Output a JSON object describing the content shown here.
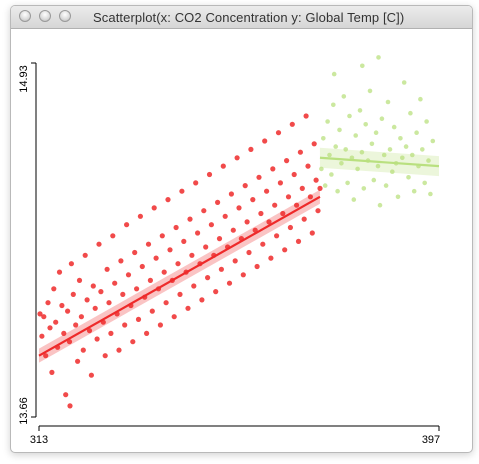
{
  "window": {
    "title": "Scatterplot(x: CO2 Concentration y: Global Temp [C])"
  },
  "colors": {
    "series_1": "#ee2a2a",
    "series_2": "#b9e07f",
    "axis": "#000000",
    "titlebar_bg": "#e3e3e3"
  },
  "chart_data": {
    "type": "scatter",
    "title": "",
    "xlabel": "",
    "ylabel": "",
    "xlim": [
      313,
      397
    ],
    "ylim": [
      13.66,
      14.93
    ],
    "x_ticks": [
      "313",
      "397"
    ],
    "y_ticks": [
      "14.93",
      "13.66"
    ],
    "grid": false,
    "series": [
      {
        "color": "#ee2a2a",
        "trend": {
          "x": [
            313,
            372
          ],
          "y": [
            13.88,
            14.45
          ]
        },
        "points": [
          [
            313.2,
            14.03
          ],
          [
            313.6,
            13.95
          ],
          [
            314.0,
            14.02
          ],
          [
            314.4,
            13.88
          ],
          [
            314.9,
            14.07
          ],
          [
            315.3,
            13.98
          ],
          [
            315.7,
            13.82
          ],
          [
            316.1,
            14.12
          ],
          [
            316.5,
            14.0
          ],
          [
            316.9,
            13.91
          ],
          [
            317.3,
            14.18
          ],
          [
            317.8,
            14.06
          ],
          [
            318.2,
            13.96
          ],
          [
            318.6,
            13.74
          ],
          [
            319.0,
            14.04
          ],
          [
            319.4,
            13.93
          ],
          [
            319.8,
            14.21
          ],
          [
            320.2,
            14.1
          ],
          [
            320.7,
            13.99
          ],
          [
            321.1,
            13.86
          ],
          [
            321.5,
            14.15
          ],
          [
            321.9,
            14.02
          ],
          [
            322.3,
            13.9
          ],
          [
            322.7,
            14.24
          ],
          [
            323.1,
            14.08
          ],
          [
            323.6,
            13.97
          ],
          [
            324.0,
            13.81
          ],
          [
            324.4,
            14.13
          ],
          [
            324.8,
            14.05
          ],
          [
            325.2,
            13.94
          ],
          [
            325.6,
            14.28
          ],
          [
            326.0,
            14.11
          ],
          [
            326.5,
            14.0
          ],
          [
            326.9,
            13.88
          ],
          [
            327.3,
            14.19
          ],
          [
            327.7,
            14.07
          ],
          [
            328.1,
            13.96
          ],
          [
            328.5,
            14.31
          ],
          [
            328.9,
            14.14
          ],
          [
            329.4,
            14.03
          ],
          [
            329.8,
            13.9
          ],
          [
            330.2,
            14.22
          ],
          [
            330.6,
            14.1
          ],
          [
            331.0,
            13.99
          ],
          [
            331.4,
            14.35
          ],
          [
            331.8,
            14.17
          ],
          [
            332.3,
            14.06
          ],
          [
            332.7,
            13.93
          ],
          [
            333.1,
            14.25
          ],
          [
            333.5,
            14.12
          ],
          [
            333.9,
            14.01
          ],
          [
            334.3,
            14.38
          ],
          [
            334.7,
            14.2
          ],
          [
            335.2,
            14.09
          ],
          [
            335.6,
            13.96
          ],
          [
            336.0,
            14.28
          ],
          [
            336.4,
            14.15
          ],
          [
            336.8,
            14.04
          ],
          [
            337.2,
            14.41
          ],
          [
            337.6,
            14.23
          ],
          [
            338.1,
            14.12
          ],
          [
            338.5,
            13.99
          ],
          [
            338.9,
            14.31
          ],
          [
            339.3,
            14.18
          ],
          [
            339.7,
            14.07
          ],
          [
            340.1,
            14.44
          ],
          [
            340.5,
            14.26
          ],
          [
            341.0,
            14.15
          ],
          [
            341.4,
            14.02
          ],
          [
            341.8,
            14.34
          ],
          [
            342.2,
            14.21
          ],
          [
            342.6,
            14.1
          ],
          [
            343.0,
            14.47
          ],
          [
            343.4,
            14.29
          ],
          [
            343.9,
            14.18
          ],
          [
            344.3,
            14.05
          ],
          [
            344.7,
            14.37
          ],
          [
            345.1,
            14.24
          ],
          [
            345.5,
            14.13
          ],
          [
            345.9,
            14.5
          ],
          [
            346.3,
            14.32
          ],
          [
            346.8,
            14.21
          ],
          [
            347.2,
            14.08
          ],
          [
            347.6,
            14.4
          ],
          [
            348.0,
            14.27
          ],
          [
            348.4,
            14.16
          ],
          [
            348.8,
            14.53
          ],
          [
            349.2,
            14.35
          ],
          [
            349.7,
            14.24
          ],
          [
            350.1,
            14.11
          ],
          [
            350.5,
            14.43
          ],
          [
            350.9,
            14.3
          ],
          [
            351.3,
            14.19
          ],
          [
            351.7,
            14.56
          ],
          [
            352.1,
            14.38
          ],
          [
            352.6,
            14.27
          ],
          [
            353.0,
            14.14
          ],
          [
            353.4,
            14.46
          ],
          [
            353.8,
            14.33
          ],
          [
            354.2,
            14.22
          ],
          [
            354.6,
            14.59
          ],
          [
            355.0,
            14.41
          ],
          [
            355.5,
            14.3
          ],
          [
            355.9,
            14.17
          ],
          [
            356.3,
            14.49
          ],
          [
            356.7,
            14.36
          ],
          [
            357.1,
            14.25
          ],
          [
            357.5,
            14.62
          ],
          [
            357.9,
            14.44
          ],
          [
            358.4,
            14.33
          ],
          [
            358.8,
            14.2
          ],
          [
            359.2,
            14.52
          ],
          [
            359.6,
            14.39
          ],
          [
            360.0,
            14.28
          ],
          [
            360.4,
            14.65
          ],
          [
            360.8,
            14.47
          ],
          [
            361.3,
            14.36
          ],
          [
            361.7,
            14.23
          ],
          [
            362.1,
            14.55
          ],
          [
            362.5,
            14.42
          ],
          [
            362.9,
            14.31
          ],
          [
            363.3,
            14.68
          ],
          [
            363.7,
            14.5
          ],
          [
            364.2,
            14.39
          ],
          [
            364.6,
            14.26
          ],
          [
            365.0,
            14.58
          ],
          [
            365.4,
            14.45
          ],
          [
            365.8,
            14.34
          ],
          [
            366.2,
            14.71
          ],
          [
            366.6,
            14.53
          ],
          [
            367.1,
            14.42
          ],
          [
            367.5,
            14.29
          ],
          [
            367.9,
            14.61
          ],
          [
            368.3,
            14.48
          ],
          [
            368.7,
            14.37
          ],
          [
            369.1,
            14.74
          ],
          [
            369.5,
            14.56
          ],
          [
            370.0,
            14.45
          ],
          [
            370.4,
            14.32
          ],
          [
            370.8,
            14.64
          ],
          [
            371.2,
            14.51
          ],
          [
            371.6,
            14.4
          ],
          [
            372.0,
            14.48
          ],
          [
            319.5,
            13.7
          ]
        ]
      },
      {
        "color": "#b9e07f",
        "trend": {
          "x": [
            372,
            397
          ],
          "y": [
            14.59,
            14.56
          ]
        },
        "points": [
          [
            372.3,
            14.55
          ],
          [
            372.7,
            14.66
          ],
          [
            373.1,
            14.49
          ],
          [
            373.6,
            14.72
          ],
          [
            374.0,
            14.6
          ],
          [
            374.4,
            14.53
          ],
          [
            374.8,
            14.78
          ],
          [
            375.3,
            14.63
          ],
          [
            375.7,
            14.47
          ],
          [
            376.1,
            14.69
          ],
          [
            376.5,
            14.57
          ],
          [
            377.0,
            14.81
          ],
          [
            377.4,
            14.62
          ],
          [
            377.8,
            14.5
          ],
          [
            378.2,
            14.74
          ],
          [
            378.7,
            14.59
          ],
          [
            379.1,
            14.44
          ],
          [
            379.5,
            14.67
          ],
          [
            379.9,
            14.55
          ],
          [
            380.4,
            14.76
          ],
          [
            380.8,
            14.61
          ],
          [
            381.2,
            14.48
          ],
          [
            381.6,
            14.71
          ],
          [
            382.1,
            14.58
          ],
          [
            382.5,
            14.83
          ],
          [
            382.9,
            14.64
          ],
          [
            383.3,
            14.51
          ],
          [
            383.8,
            14.68
          ],
          [
            384.2,
            14.56
          ],
          [
            384.6,
            14.42
          ],
          [
            385.0,
            14.73
          ],
          [
            385.5,
            14.6
          ],
          [
            385.9,
            14.49
          ],
          [
            386.3,
            14.79
          ],
          [
            386.7,
            14.62
          ],
          [
            387.2,
            14.54
          ],
          [
            387.6,
            14.7
          ],
          [
            388.0,
            14.57
          ],
          [
            388.4,
            14.45
          ],
          [
            388.9,
            14.66
          ],
          [
            389.3,
            14.59
          ],
          [
            389.7,
            14.86
          ],
          [
            390.1,
            14.63
          ],
          [
            390.6,
            14.52
          ],
          [
            391.0,
            14.75
          ],
          [
            391.4,
            14.6
          ],
          [
            391.8,
            14.47
          ],
          [
            392.3,
            14.68
          ],
          [
            392.7,
            14.56
          ],
          [
            393.1,
            14.8
          ],
          [
            393.5,
            14.62
          ],
          [
            394.0,
            14.5
          ],
          [
            394.4,
            14.72
          ],
          [
            394.8,
            14.58
          ],
          [
            395.2,
            14.46
          ],
          [
            395.7,
            14.65
          ],
          [
            380.9,
            14.92
          ],
          [
            384.3,
            14.95
          ],
          [
            375.0,
            14.89
          ]
        ]
      }
    ]
  }
}
